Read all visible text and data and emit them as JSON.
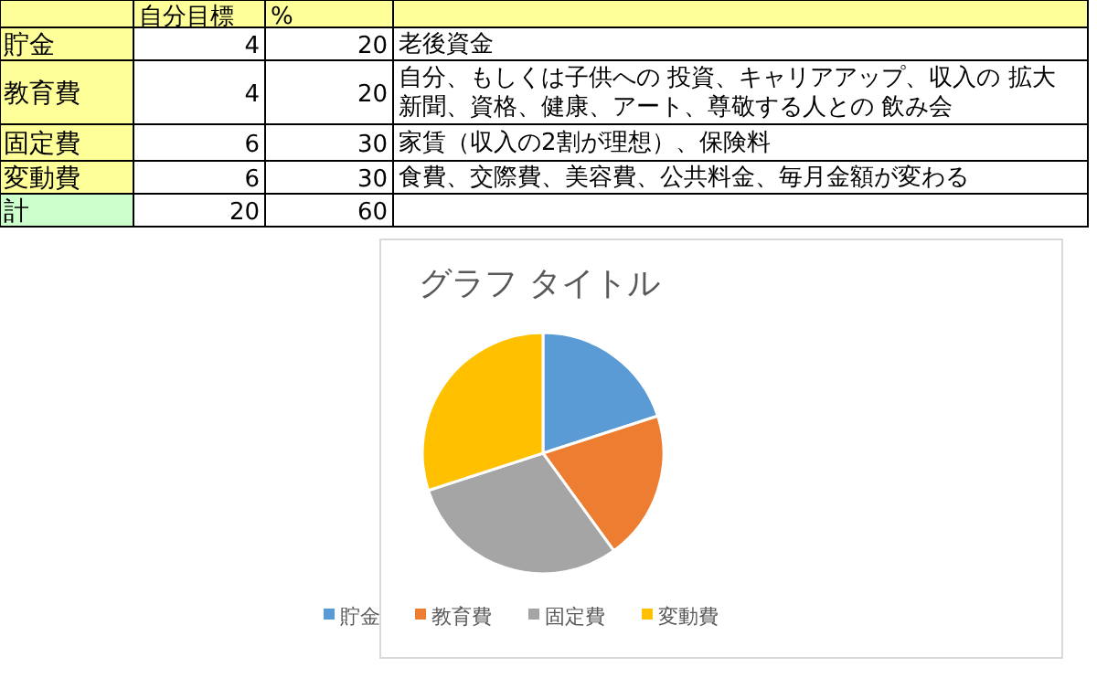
{
  "chart_data": [
    {
      "type": "other",
      "categories": [
        "自分目標",
        "%",
        null
      ],
      "y_categories": [
        "貯金",
        "教育費",
        "固定費",
        "変動費",
        "計"
      ],
      "cell_labels": [
        [
          "4",
          "20",
          "老後資金"
        ],
        [
          "4",
          "20",
          "自分、もしくは子供への 投資、キャリアアップ、収入の 拡大新聞、資格、健康、アート、尊敬する人との 飲み会"
        ],
        [
          "6",
          "30",
          "家賃（収入の2割が理想）、保険料"
        ],
        [
          "6",
          "30",
          "食費、交際費、美容費、公共料金、毎月金額が変わる"
        ],
        [
          "20",
          "60",
          null
        ]
      ]
    },
    {
      "type": "pie",
      "title": "グラフ タイトル",
      "categories": [
        "貯金",
        "教育費",
        "固定費",
        "変動費"
      ],
      "values": [
        20,
        20,
        30,
        30
      ],
      "colors": [
        "#5b9bd5",
        "#ed7d31",
        "#a5a5a5",
        "#ffc000"
      ],
      "legend": "bottom"
    }
  ]
}
